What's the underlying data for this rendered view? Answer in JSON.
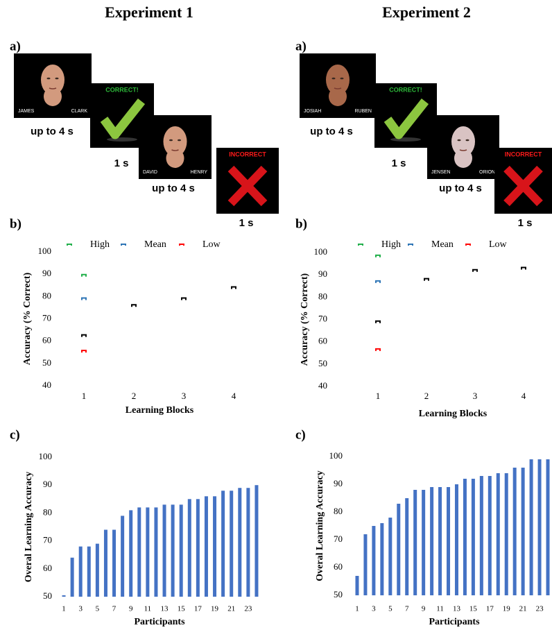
{
  "experiments": [
    {
      "title": "Experiment 1",
      "panel_labels": [
        "a)",
        "b)",
        "c)"
      ],
      "trials": [
        {
          "left_name": "JAMES",
          "right_name": "CLARK",
          "duration": "up to 4 s"
        },
        {
          "feedback": "CORRECT!",
          "duration": "1 s"
        },
        {
          "left_name": "DAVID",
          "right_name": "HENRY",
          "duration": "up to 4 s"
        },
        {
          "feedback": "INCORRECT",
          "duration": "1 s"
        }
      ]
    },
    {
      "title": "Experiment 2",
      "panel_labels": [
        "a)",
        "b)",
        "c)"
      ],
      "trials": [
        {
          "left_name": "JOSIAH",
          "right_name": "RUBEN",
          "duration": "up to 4 s"
        },
        {
          "feedback": "CORRECT!",
          "duration": "1 s"
        },
        {
          "left_name": "JENSEN",
          "right_name": "ORION",
          "duration": "up to 4 s"
        },
        {
          "feedback": "INCORRECT",
          "duration": "1 s"
        }
      ]
    }
  ],
  "chart_data": [
    {
      "type": "scatter",
      "xlabel": "Learning Blocks",
      "ylabel": "Accuracy (% Correct)",
      "xlim": [
        0.5,
        4.5
      ],
      "xticks": [
        1,
        2,
        3,
        4
      ],
      "ylim": [
        40,
        100
      ],
      "yticks": [
        40,
        50,
        60,
        70,
        80,
        90,
        100
      ],
      "legend": "top",
      "series": [
        {
          "name": "High",
          "color": "#22b04b",
          "x": [
            1
          ],
          "values": [
            89.5
          ]
        },
        {
          "name": "Mean",
          "color": "#2e75b6",
          "x": [
            1
          ],
          "values": [
            79
          ]
        },
        {
          "name": "Low",
          "color": "#ff0000",
          "x": [
            1
          ],
          "values": [
            55.5
          ]
        },
        {
          "color": "#000000",
          "x": [
            1,
            2,
            3,
            4
          ],
          "values": [
            62.5,
            76,
            79,
            84
          ]
        }
      ]
    },
    {
      "type": "scatter",
      "xlabel": "Learning Blocks",
      "ylabel": "Accuracy (% Correct)",
      "xlim": [
        0.5,
        4.5
      ],
      "xticks": [
        1,
        2,
        3,
        4
      ],
      "ylim": [
        40,
        100
      ],
      "yticks": [
        40,
        50,
        60,
        70,
        80,
        90,
        100
      ],
      "legend": "top",
      "series": [
        {
          "name": "High",
          "color": "#22b04b",
          "x": [
            1
          ],
          "values": [
            98.5
          ]
        },
        {
          "name": "Mean",
          "color": "#2e75b6",
          "x": [
            1
          ],
          "values": [
            87
          ]
        },
        {
          "name": "Low",
          "color": "#ff0000",
          "x": [
            1
          ],
          "values": [
            56.5
          ]
        },
        {
          "color": "#000000",
          "x": [
            1,
            2,
            3,
            4
          ],
          "values": [
            69,
            88,
            92,
            93
          ]
        }
      ]
    },
    {
      "type": "bar",
      "xlabel": "Participants",
      "ylabel": "Overal Learning Accuracy",
      "color": "#4472c4",
      "x": [
        1,
        2,
        3,
        4,
        5,
        6,
        7,
        8,
        9,
        10,
        11,
        12,
        13,
        14,
        15,
        16,
        17,
        18,
        19,
        20,
        21,
        22,
        23,
        24
      ],
      "values": [
        50.5,
        64,
        68,
        68,
        69,
        74,
        74,
        79,
        81,
        82,
        82,
        82,
        83,
        83,
        83,
        85,
        85,
        86,
        86,
        88,
        88,
        89,
        89,
        90
      ],
      "xlim": [
        0.5,
        24.5
      ],
      "xticks": [
        1,
        3,
        5,
        7,
        9,
        11,
        13,
        15,
        17,
        19,
        21,
        23
      ],
      "ylim": [
        50,
        100
      ],
      "yticks": [
        50,
        60,
        70,
        80,
        90,
        100
      ]
    },
    {
      "type": "bar",
      "xlabel": "Participants",
      "ylabel": "Overal Learning Accuracy",
      "color": "#4472c4",
      "x": [
        1,
        2,
        3,
        4,
        5,
        6,
        7,
        8,
        9,
        10,
        11,
        12,
        13,
        14,
        15,
        16,
        17,
        18,
        19,
        20,
        21,
        22,
        23,
        24
      ],
      "values": [
        57,
        72,
        75,
        76,
        78,
        83,
        85,
        88,
        88,
        89,
        89,
        89,
        90,
        92,
        92,
        93,
        93,
        94,
        94,
        96,
        96,
        99,
        99,
        99
      ],
      "xlim": [
        0.5,
        24.5
      ],
      "xticks": [
        1,
        3,
        5,
        7,
        9,
        11,
        13,
        15,
        17,
        19,
        21,
        23
      ],
      "ylim": [
        50,
        100
      ],
      "yticks": [
        50,
        60,
        70,
        80,
        90,
        100
      ]
    }
  ]
}
